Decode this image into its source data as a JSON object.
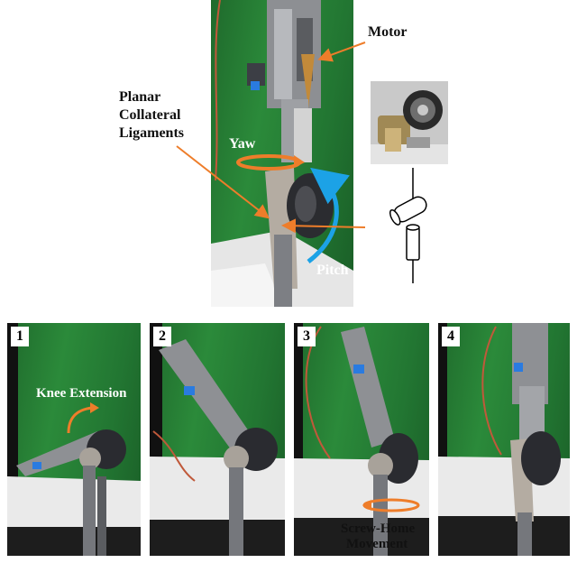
{
  "top": {
    "labels": {
      "motor": "Motor",
      "ligaments": [
        "Planar",
        "Collateral",
        "Ligaments"
      ],
      "yaw": "Yaw",
      "pitch": "Pitch"
    }
  },
  "sequence": [
    {
      "number": "1",
      "caption": "Knee Extension"
    },
    {
      "number": "2",
      "caption": ""
    },
    {
      "number": "3",
      "caption": [
        "Screw-Home",
        "Movement"
      ]
    },
    {
      "number": "4",
      "caption": ""
    }
  ],
  "colors": {
    "orange": "#ee7d2a",
    "blue": "#1ca2e6",
    "green_backdrop": "#2b8a3a"
  }
}
